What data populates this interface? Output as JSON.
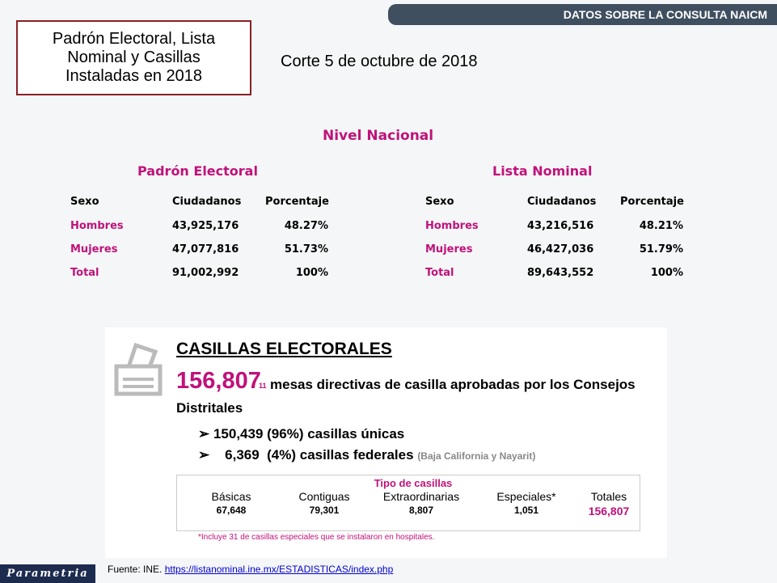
{
  "header": {
    "banner": "DATOS SOBRE LA CONSULTA NAICM",
    "title": "Padrón Electoral, Lista Nominal y Casillas Instaladas en 2018",
    "date": "Corte 5 de octubre de 2018"
  },
  "section": "Nivel Nacional",
  "tables": [
    {
      "title": "Padrón Electoral",
      "columns": [
        "Sexo",
        "Ciudadanos",
        "Porcentaje"
      ],
      "rows": [
        [
          "Hombres",
          "43,925,176",
          "48.27%"
        ],
        [
          "Mujeres",
          "47,077,816",
          "51.73%"
        ],
        [
          "Total",
          "91,002,992",
          "100%"
        ]
      ]
    },
    {
      "title": "Lista Nominal",
      "columns": [
        "Sexo",
        "Ciudadanos",
        "Porcentaje"
      ],
      "rows": [
        [
          "Hombres",
          "43,216,516",
          "48.21%"
        ],
        [
          "Mujeres",
          "46,427,036",
          "51.79%"
        ],
        [
          "Total",
          "89,643,552",
          "100%"
        ]
      ]
    }
  ],
  "casillas": {
    "title": "CASILLAS ELECTORALES",
    "total": "156,807",
    "footnote_mark": "11",
    "description": "mesas directivas de casilla aprobadas por los Consejos",
    "description_2": "Distritales",
    "bullets": [
      {
        "text": "150,439 (96%) casillas únicas"
      },
      {
        "text": "6,369  (4%) casillas federales",
        "note": "(Baja California y Nayarit)"
      }
    ],
    "types": {
      "title": "Tipo de casillas",
      "columns": [
        "Básicas",
        "Contiguas",
        "Extraordinarias",
        "Especiales*",
        "Totales"
      ],
      "values": [
        "67,648",
        "79,301",
        "8,807",
        "1,051",
        "156,807"
      ]
    },
    "footnote": "*Incluye 31 de casillas especiales que se instalaron en hospitales."
  },
  "footer": {
    "logo": "Parametria",
    "source": "Fuente: INE.",
    "link": "https://listanominal.ine.mx/ESTADISTICAS/index.php"
  }
}
